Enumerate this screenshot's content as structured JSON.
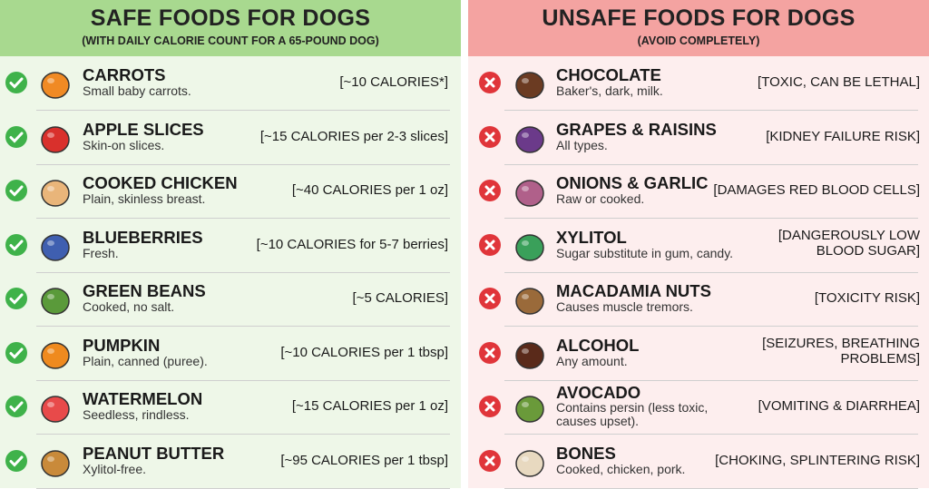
{
  "safe": {
    "title": "SAFE FOODS FOR DOGS",
    "subtitle": "(WITH DAILY CALORIE COUNT FOR A 65-POUND DOG)",
    "items": [
      {
        "name": "CARROTS",
        "description": "Small baby carrots.",
        "note": "[~10 CALORIES*]"
      },
      {
        "name": "APPLE SLICES",
        "description": "Skin-on slices.",
        "note": "[~15 CALORIES per 2-3 slices]"
      },
      {
        "name": "COOKED CHICKEN",
        "description": "Plain, skinless breast.",
        "note": "[~40 CALORIES per 1 oz]"
      },
      {
        "name": "BLUEBERRIES",
        "description": "Fresh.",
        "note": "[~10 CALORIES for 5-7 berries]"
      },
      {
        "name": "GREEN BEANS",
        "description": "Cooked, no salt.",
        "note": "[~5 CALORIES]"
      },
      {
        "name": "PUMPKIN",
        "description": "Plain, canned (puree).",
        "note": "[~10 CALORIES per 1 tbsp]"
      },
      {
        "name": "WATERMELON",
        "description": "Seedless, rindless.",
        "note": "[~15 CALORIES per 1 oz]"
      },
      {
        "name": "PEANUT BUTTER",
        "description": "Xylitol-free.",
        "note": "[~95 CALORIES per 1 tbsp]"
      }
    ]
  },
  "unsafe": {
    "title": "UNSAFE FOODS FOR DOGS",
    "subtitle": "(AVOID COMPLETELY)",
    "items": [
      {
        "name": "CHOCOLATE",
        "description": "Baker's, dark, milk.",
        "note": "[TOXIC, CAN BE LETHAL]"
      },
      {
        "name": "GRAPES & RAISINS",
        "description": "All types.",
        "note": "[KIDNEY FAILURE RISK]"
      },
      {
        "name": "ONIONS & GARLIC",
        "description": "Raw or cooked.",
        "note": "[DAMAGES RED BLOOD CELLS]"
      },
      {
        "name": "XYLITOL",
        "description": "Sugar substitute in gum, candy.",
        "note": "[DANGEROUSLY LOW\nBLOOD SUGAR]"
      },
      {
        "name": "MACADAMIA NUTS",
        "description": "Causes muscle tremors.",
        "note": "[TOXICITY RISK]"
      },
      {
        "name": "ALCOHOL",
        "description": "Any amount.",
        "note": "[SEIZURES, BREATHING\nPROBLEMS]"
      },
      {
        "name": "AVOCADO",
        "description": "Contains persin (less toxic,\ncauses upset).",
        "note": "[VOMITING & DIARRHEA]"
      },
      {
        "name": "BONES",
        "description": "Cooked, chicken, pork.",
        "note": "[CHOKING, SPLINTERING RISK]"
      }
    ]
  }
}
